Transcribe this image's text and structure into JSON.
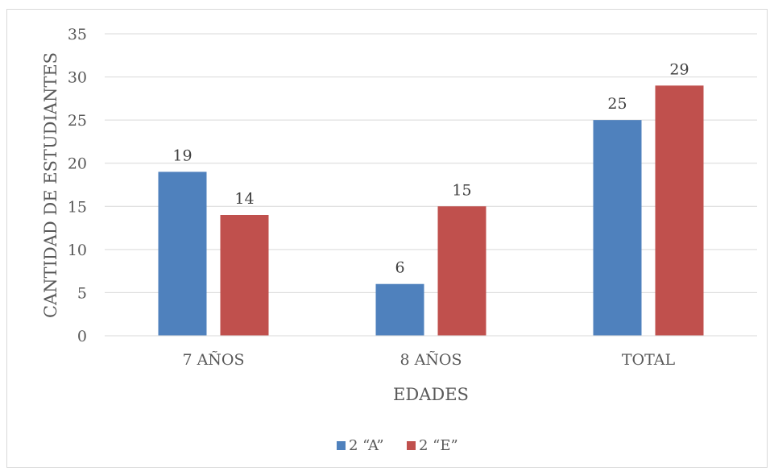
{
  "chart_data": {
    "type": "bar",
    "title": "",
    "xlabel": "EDADES",
    "ylabel": "CANTIDAD DE ESTUDIANTES",
    "categories": [
      "7 AÑOS",
      "8 AÑOS",
      "TOTAL"
    ],
    "series": [
      {
        "name": "2 “A”",
        "values": [
          19,
          6,
          25
        ],
        "color": "#4f81bd"
      },
      {
        "name": "2 “E”",
        "values": [
          14,
          15,
          29
        ],
        "color": "#c0504d"
      }
    ],
    "ylim": [
      0,
      35
    ],
    "yticks": [
      0,
      5,
      10,
      15,
      20,
      25,
      30,
      35
    ],
    "grid": true,
    "data_labels": true,
    "legend": "bottom"
  }
}
